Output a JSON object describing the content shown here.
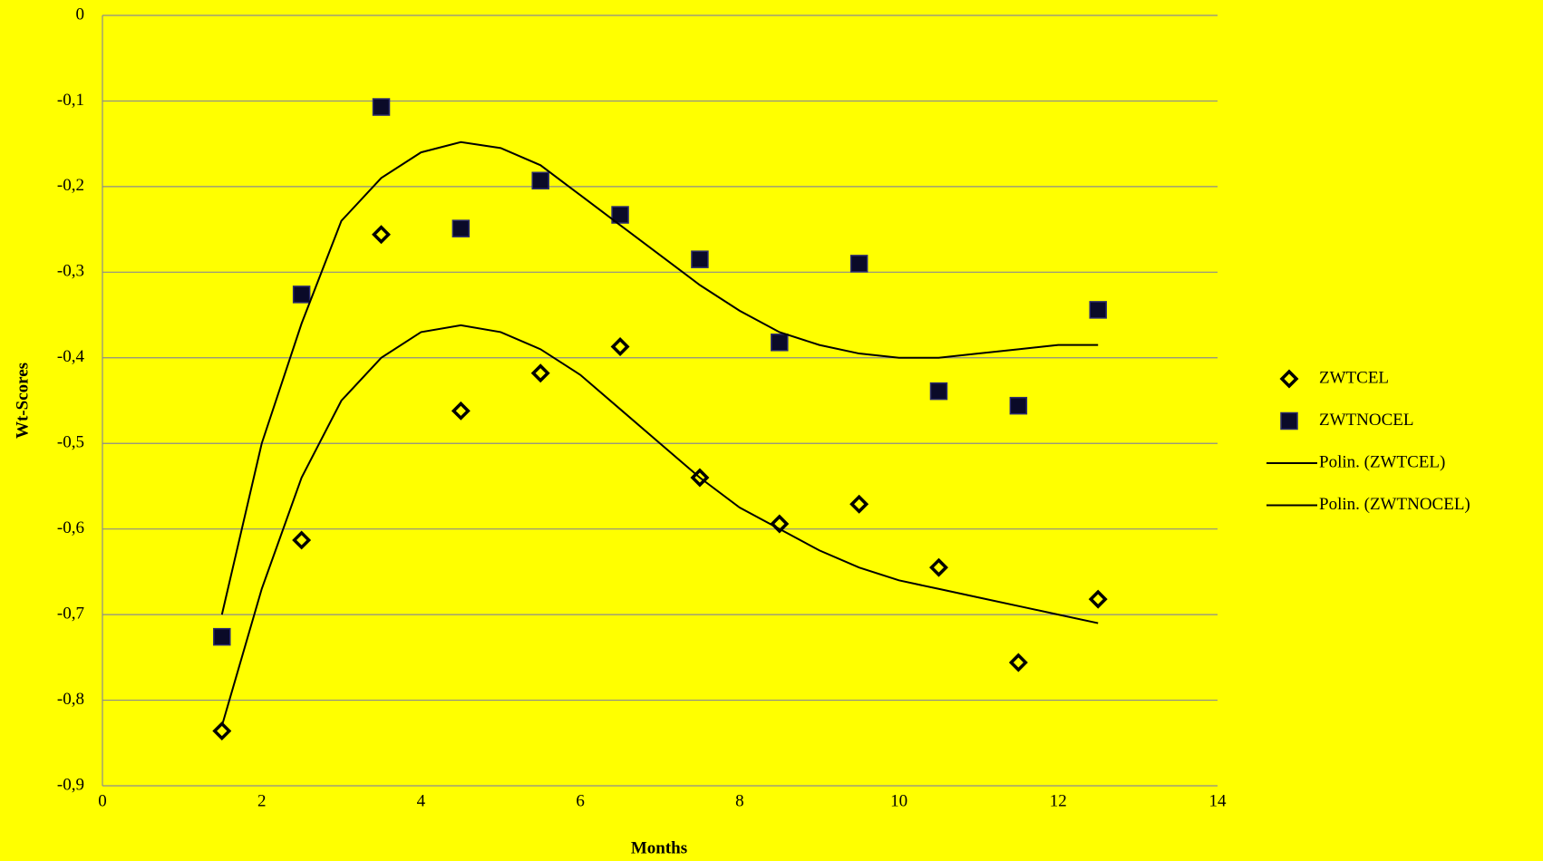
{
  "chart_data": {
    "type": "scatter",
    "x_label": "Months",
    "y_label": "Wt-Scores",
    "xlim": [
      0,
      14
    ],
    "xticks": [
      0,
      2,
      4,
      6,
      8,
      10,
      12,
      14
    ],
    "ylim": [
      -0.9,
      0
    ],
    "yticks": [
      0,
      {
        "value": -0.1,
        "label": "-0,1"
      },
      {
        "value": -0.2,
        "label": "-0,2"
      },
      {
        "value": -0.3,
        "label": "-0,3"
      },
      {
        "value": -0.4,
        "label": "-0,4"
      },
      {
        "value": -0.5,
        "label": "-0,5"
      },
      {
        "value": -0.6,
        "label": "-0,6"
      },
      {
        "value": -0.7,
        "label": "-0,7"
      },
      {
        "value": -0.8,
        "label": "-0,8"
      },
      {
        "value": -0.9,
        "label": "-0,9"
      }
    ],
    "grid": true,
    "legend": "right",
    "series": [
      {
        "name": "ZWTCEL",
        "color": "#000000",
        "marker": "diamond",
        "x": [
          1.5,
          2.5,
          3.5,
          4.5,
          5.5,
          6.5,
          7.5,
          8.5,
          9.5,
          10.5,
          11.5,
          12.5
        ],
        "values": [
          -0.836,
          -0.613,
          -0.256,
          -0.462,
          -0.418,
          -0.387,
          -0.54,
          -0.594,
          -0.571,
          -0.645,
          -0.756,
          -0.682
        ]
      },
      {
        "name": "ZWTNOCEL",
        "color": "#0a0a28",
        "marker": "square",
        "x": [
          1.5,
          2.5,
          3.5,
          4.5,
          5.5,
          6.5,
          7.5,
          8.5,
          9.5,
          10.5,
          11.5,
          12.5
        ],
        "values": [
          -0.726,
          -0.326,
          -0.107,
          -0.249,
          -0.193,
          -0.233,
          -0.285,
          -0.382,
          -0.29,
          -0.439,
          -0.456,
          -0.344
        ]
      },
      {
        "name": "Polin. (ZWTCEL)",
        "color": "#000000",
        "marker": "line",
        "x": [
          1.5,
          2,
          2.5,
          3,
          3.5,
          4,
          4.5,
          5,
          5.5,
          6,
          6.5,
          7,
          7.5,
          8,
          8.5,
          9,
          9.5,
          10,
          10.5,
          11,
          11.5,
          12,
          12.5
        ],
        "values": [
          -0.83,
          -0.67,
          -0.54,
          -0.45,
          -0.4,
          -0.37,
          -0.362,
          -0.37,
          -0.39,
          -0.42,
          -0.46,
          -0.5,
          -0.54,
          -0.575,
          -0.6,
          -0.625,
          -0.645,
          -0.66,
          -0.67,
          -0.68,
          -0.69,
          -0.7,
          -0.71
        ]
      },
      {
        "name": "Polin. (ZWTNOCEL)",
        "color": "#000000",
        "marker": "line",
        "x": [
          1.5,
          2,
          2.5,
          3,
          3.5,
          4,
          4.5,
          5,
          5.5,
          6,
          6.5,
          7,
          7.5,
          8,
          8.5,
          9,
          9.5,
          10,
          10.5,
          11,
          11.5,
          12,
          12.5
        ],
        "values": [
          -0.7,
          -0.5,
          -0.36,
          -0.24,
          -0.19,
          -0.16,
          -0.148,
          -0.155,
          -0.175,
          -0.21,
          -0.245,
          -0.28,
          -0.315,
          -0.345,
          -0.37,
          -0.385,
          -0.395,
          -0.4,
          -0.4,
          -0.395,
          -0.39,
          -0.385,
          -0.385
        ]
      }
    ]
  }
}
